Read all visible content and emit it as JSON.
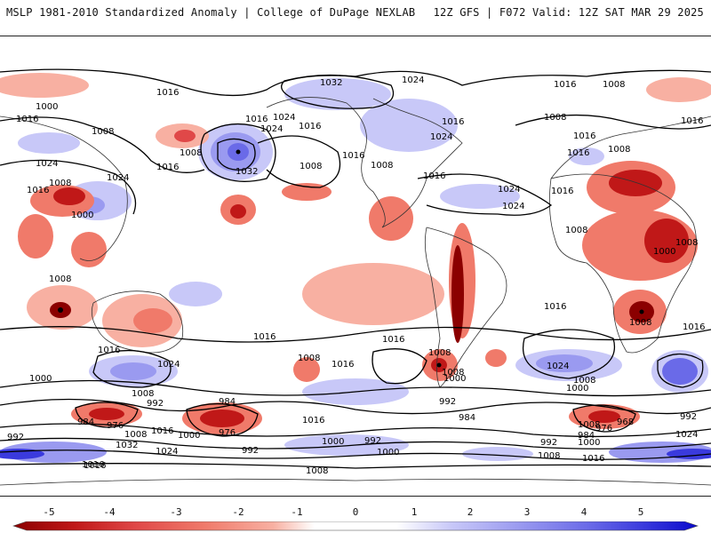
{
  "header": {
    "title_left": "MSLP 1981-2010 Standardized Anomaly | College of DuPage NEXLAB",
    "title_right": "12Z GFS | F072 Valid: 12Z SAT MAR 29 2025"
  },
  "map": {
    "isobar_labels": [
      {
        "text": "1016"
      },
      {
        "text": "1000"
      },
      {
        "text": "1016"
      },
      {
        "text": "1008"
      },
      {
        "text": "1024"
      },
      {
        "text": "1016"
      },
      {
        "text": "1008"
      },
      {
        "text": "1000"
      },
      {
        "text": "1024"
      },
      {
        "text": "1016"
      },
      {
        "text": "1008"
      },
      {
        "text": "1016"
      },
      {
        "text": "1024"
      },
      {
        "text": "1016"
      },
      {
        "text": "1024"
      },
      {
        "text": "1008"
      },
      {
        "text": "1032"
      },
      {
        "text": "1016"
      },
      {
        "text": "1008"
      },
      {
        "text": "1032"
      },
      {
        "text": "1024"
      },
      {
        "text": "1016"
      },
      {
        "text": "1008"
      },
      {
        "text": "1016"
      },
      {
        "text": "1008"
      },
      {
        "text": "1024"
      },
      {
        "text": "1016"
      },
      {
        "text": "1016"
      },
      {
        "text": "1024"
      },
      {
        "text": "1024"
      },
      {
        "text": "1016"
      },
      {
        "text": "1008"
      },
      {
        "text": "1016"
      },
      {
        "text": "1008"
      },
      {
        "text": "1016"
      },
      {
        "text": "1008"
      },
      {
        "text": "1000"
      },
      {
        "text": "1016"
      },
      {
        "text": "1008"
      },
      {
        "text": "1008"
      },
      {
        "text": "1016"
      },
      {
        "text": "1016"
      },
      {
        "text": "1016"
      },
      {
        "text": "1016"
      },
      {
        "text": "1024"
      },
      {
        "text": "1000"
      },
      {
        "text": "1008"
      },
      {
        "text": "992"
      },
      {
        "text": "984"
      },
      {
        "text": "976"
      },
      {
        "text": "1008"
      },
      {
        "text": "1032"
      },
      {
        "text": "984"
      },
      {
        "text": "1016"
      },
      {
        "text": "1000"
      },
      {
        "text": "976"
      },
      {
        "text": "992"
      },
      {
        "text": "1024"
      },
      {
        "text": "1008"
      },
      {
        "text": "1016"
      },
      {
        "text": "1008"
      },
      {
        "text": "1016"
      },
      {
        "text": "1000"
      },
      {
        "text": "1000"
      },
      {
        "text": "992"
      },
      {
        "text": "1008"
      },
      {
        "text": "1000"
      },
      {
        "text": "1008"
      },
      {
        "text": "992"
      },
      {
        "text": "984"
      },
      {
        "text": "1000"
      },
      {
        "text": "1008"
      },
      {
        "text": "1016"
      },
      {
        "text": "1024"
      },
      {
        "text": "1000"
      },
      {
        "text": "1008"
      },
      {
        "text": "992"
      },
      {
        "text": "976"
      },
      {
        "text": "968"
      },
      {
        "text": "984"
      },
      {
        "text": "992"
      },
      {
        "text": "1008"
      },
      {
        "text": "1016"
      },
      {
        "text": "992"
      },
      {
        "text": "1024"
      },
      {
        "text": "1016"
      }
    ]
  },
  "colorbar": {
    "ticks": [
      "-5",
      "-4",
      "-3",
      "-2",
      "-1",
      "0",
      "1",
      "2",
      "3",
      "4",
      "5"
    ],
    "colors": [
      "#8b0000",
      "#c01818",
      "#e04848",
      "#f07a6a",
      "#f8b0a2",
      "#ffffff",
      "#ffffff",
      "#c8c8f8",
      "#9a9af0",
      "#6a6ae8",
      "#3a3add",
      "#0a0acc"
    ]
  }
}
